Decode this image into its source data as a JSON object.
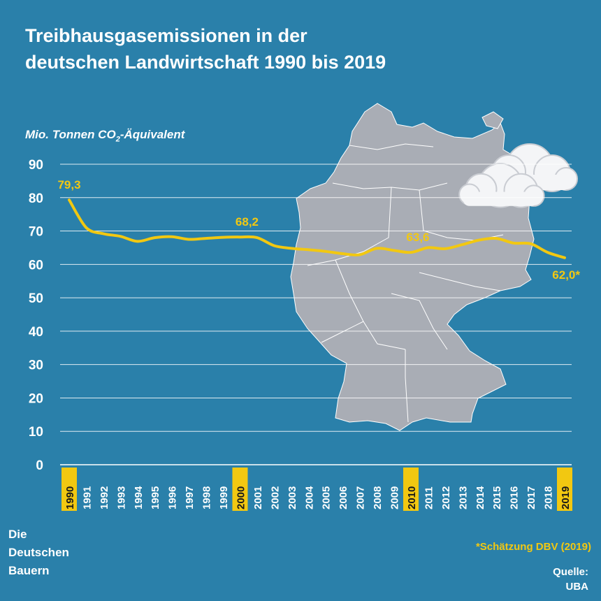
{
  "title": {
    "line1": "Treibhausgasemissionen in der",
    "line2": "deutschen Landwirtschaft 1990 bis 2019"
  },
  "unit": {
    "prefix": "Mio. Tonnen CO",
    "sub": "2",
    "suffix": "-Äquivalent"
  },
  "branding": {
    "line1": "Die",
    "line2": "Deutschen",
    "line3": "Bauern"
  },
  "footnote": "*Schätzung DBV (2019)",
  "source": {
    "line1": "Quelle:",
    "line2": "UBA"
  },
  "colors": {
    "background": "#2a80aa",
    "line": "#f2c811",
    "map": "#a9adb5",
    "highlight": "#f2c811",
    "text": "#ffffff"
  },
  "icons": [
    "germany-map",
    "cloud-icon"
  ],
  "chart_data": {
    "type": "line",
    "x": [
      1990,
      1991,
      1992,
      1993,
      1994,
      1995,
      1996,
      1997,
      1998,
      1999,
      2000,
      2001,
      2002,
      2003,
      2004,
      2005,
      2006,
      2007,
      2008,
      2009,
      2010,
      2011,
      2012,
      2013,
      2014,
      2015,
      2016,
      2017,
      2018,
      2019
    ],
    "xtick_labels": [
      "1990",
      "1991",
      "1992",
      "1993",
      "1994",
      "1995",
      "1996",
      "1997",
      "1998",
      "1999",
      "2000",
      "2001",
      "2002",
      "2003",
      "2004",
      "2005",
      "2006",
      "2007",
      "2008",
      "2009",
      "2010",
      "2011",
      "2012",
      "2013",
      "2014",
      "2015",
      "2016",
      "2017",
      "2018",
      "2019"
    ],
    "highlighted_years": [
      1990,
      2000,
      2010,
      2019
    ],
    "series": [
      {
        "values": [
          79.3,
          71.0,
          69.2,
          68.4,
          66.9,
          68.0,
          68.3,
          67.5,
          67.8,
          68.1,
          68.2,
          68.0,
          65.6,
          64.8,
          64.4,
          63.9,
          63.2,
          62.9,
          64.8,
          64.2,
          63.6,
          65.0,
          64.7,
          65.9,
          67.3,
          67.8,
          66.4,
          66.2,
          63.6,
          62.0
        ]
      }
    ],
    "annotations": [
      {
        "x": 1990,
        "label": "79,3"
      },
      {
        "x": 2000,
        "label": "68,2"
      },
      {
        "x": 2010,
        "label": "63,6"
      },
      {
        "x": 2019,
        "label": "62,0*"
      }
    ],
    "yticks": [
      "0",
      "10",
      "20",
      "30",
      "40",
      "50",
      "60",
      "70",
      "80",
      "90"
    ],
    "ylim": [
      0,
      90
    ],
    "grid": true
  }
}
